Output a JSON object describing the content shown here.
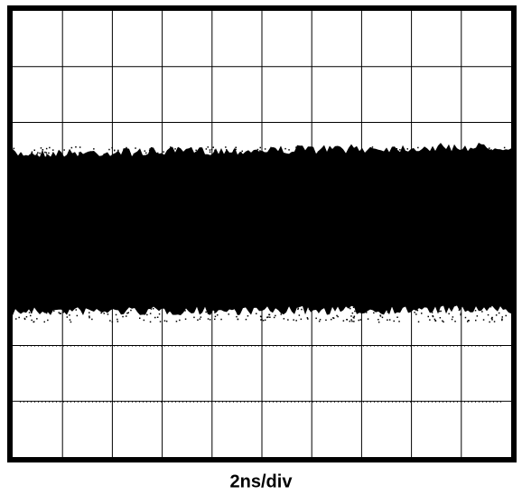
{
  "x_axis_label": "2ns/div"
}
